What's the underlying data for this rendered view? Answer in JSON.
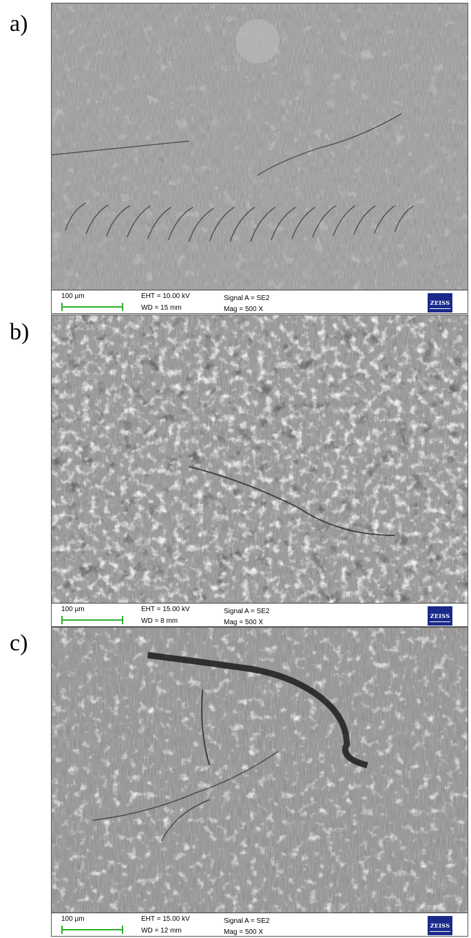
{
  "panels": [
    {
      "letter": "a)",
      "scale": "100 µm",
      "eht": "EHT = 10.00 kV",
      "wd": "WD =  15 mm",
      "signal": "Signal A = SE2",
      "mag": "Mag =   500 X",
      "logo": "ZEISS"
    },
    {
      "letter": "b)",
      "scale": "100 µm",
      "eht": "EHT = 15.00 kV",
      "wd": "WD =   8 mm",
      "signal": "Signal A = SE2",
      "mag": "Mag =   500 X",
      "logo": "ZEISS"
    },
    {
      "letter": "c)",
      "scale": "100 µm",
      "eht": "EHT = 15.00 kV",
      "wd": "WD =  12 mm",
      "signal": "Signal A = SE2",
      "mag": "Mag =   500 X",
      "logo": "ZEISS"
    }
  ]
}
